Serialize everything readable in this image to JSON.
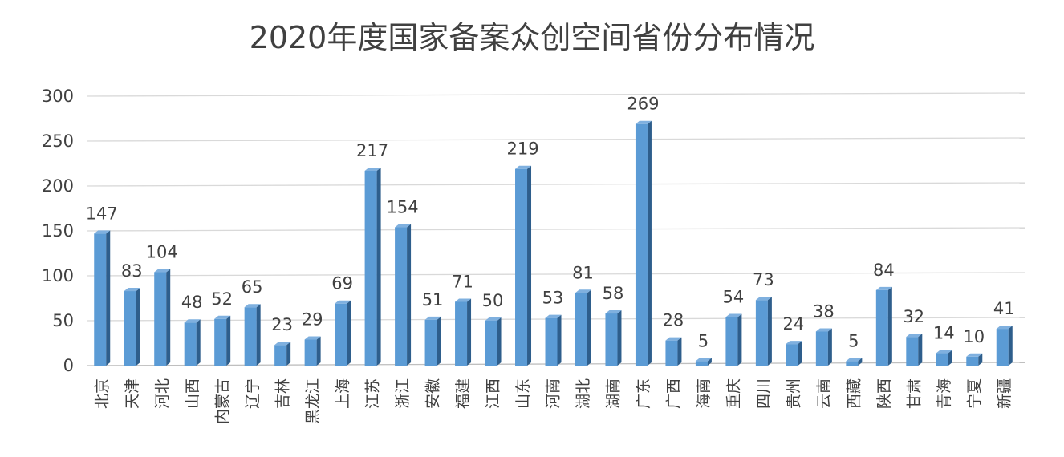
{
  "chart_data": {
    "type": "bar",
    "title": "2020年度国家备案众创空间省份分布情况",
    "xlabel": "",
    "ylabel": "",
    "ylim": [
      0,
      300
    ],
    "yticks": [
      0,
      50,
      100,
      150,
      200,
      250,
      300
    ],
    "grid": true,
    "legend": "none",
    "bar_color": "#5B9BD5",
    "bar_shade_color": "#2E5E8C",
    "categories": [
      "北京",
      "天津",
      "河北",
      "山西",
      "内蒙古",
      "辽宁",
      "吉林",
      "黑龙江",
      "上海",
      "江苏",
      "浙江",
      "安徽",
      "福建",
      "江西",
      "山东",
      "河南",
      "湖北",
      "湖南",
      "广东",
      "广西",
      "海南",
      "重庆",
      "四川",
      "贵州",
      "云南",
      "西藏",
      "陕西",
      "甘肃",
      "青海",
      "宁夏",
      "新疆"
    ],
    "values": [
      147,
      83,
      104,
      48,
      52,
      65,
      23,
      29,
      69,
      217,
      154,
      51,
      71,
      50,
      219,
      53,
      81,
      58,
      269,
      28,
      5,
      54,
      73,
      24,
      38,
      5,
      84,
      32,
      14,
      10,
      41
    ]
  }
}
